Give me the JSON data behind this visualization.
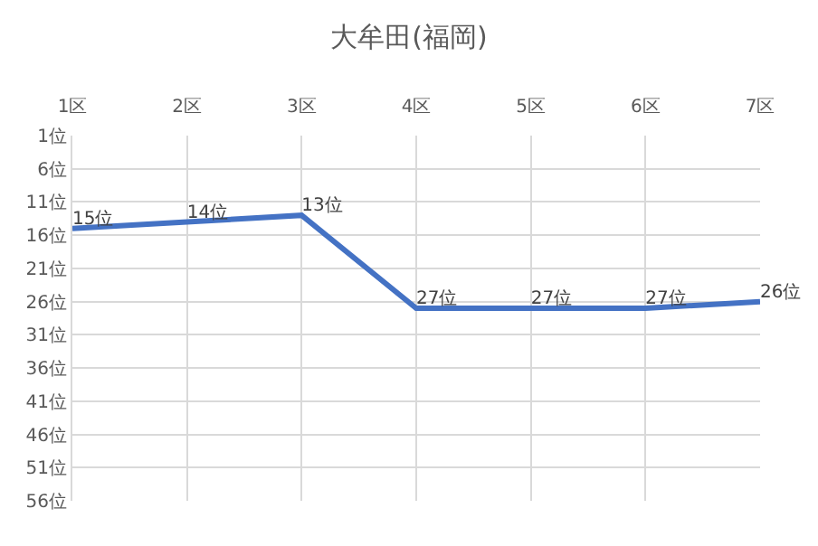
{
  "chart_data": {
    "type": "line",
    "title": "大牟田(福岡)",
    "categories": [
      "1区",
      "2区",
      "3区",
      "4区",
      "5区",
      "6区",
      "7区"
    ],
    "series": [
      {
        "color": "#4472c4",
        "values": [
          15,
          14,
          13,
          27,
          27,
          27,
          26
        ],
        "value_labels": [
          "15位",
          "14位",
          "13位",
          "27位",
          "27位",
          "27位",
          "26位"
        ]
      }
    ],
    "ylim": [
      56,
      1
    ],
    "yticks": [
      {
        "value": 1,
        "label": "1位"
      },
      {
        "value": 6,
        "label": "6位"
      },
      {
        "value": 11,
        "label": "11位"
      },
      {
        "value": 16,
        "label": "16位"
      },
      {
        "value": 21,
        "label": "21位"
      },
      {
        "value": 26,
        "label": "26位"
      },
      {
        "value": 31,
        "label": "31位"
      },
      {
        "value": 36,
        "label": "36位"
      },
      {
        "value": 41,
        "label": "41位"
      },
      {
        "value": 46,
        "label": "46位"
      },
      {
        "value": 51,
        "label": "51位"
      },
      {
        "value": 56,
        "label": "56位"
      }
    ],
    "grid": true,
    "marker": "none",
    "line_style": "solid"
  }
}
